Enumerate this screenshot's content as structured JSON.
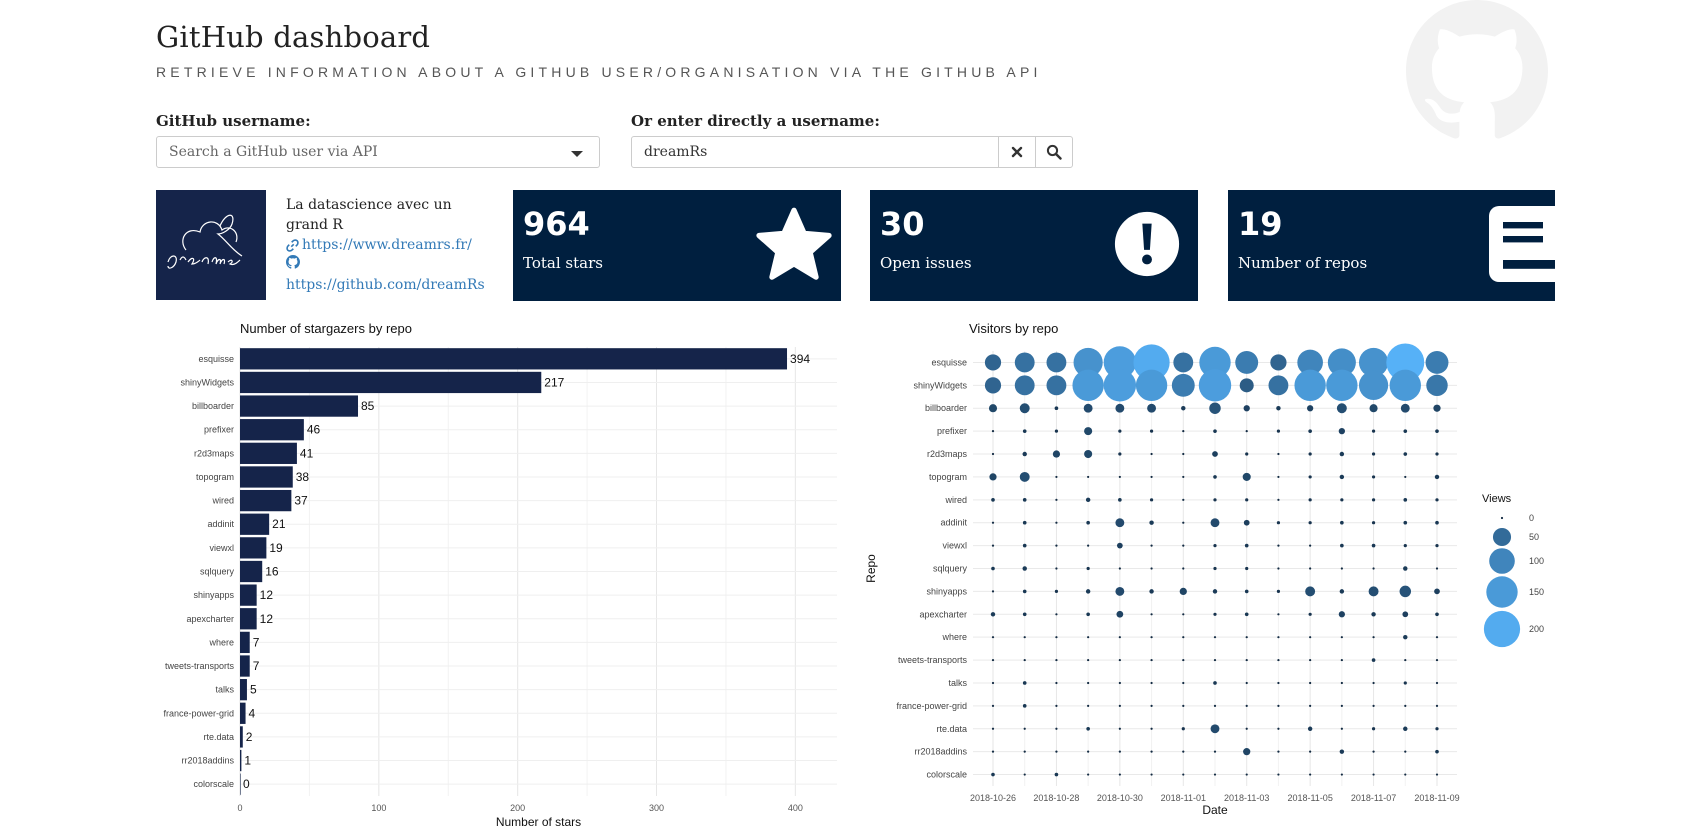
{
  "header": {
    "title": "GitHub dashboard",
    "subtitle": "RETRIEVE INFORMATION ABOUT A GITHUB USER/ORGANISATION VIA THE GITHUB API"
  },
  "search": {
    "username_label": "GitHub username:",
    "select_placeholder": "Search a GitHub user via API",
    "direct_label": "Or enter directly a username:",
    "direct_value": "dreamRs"
  },
  "user": {
    "bio": "La datascience avec un grand R",
    "website": "https://www.dreamrs.fr/",
    "github_url": "https://github.com/dreamRs"
  },
  "stats": [
    {
      "value": "964",
      "caption": "Total stars",
      "icon": "star-icon"
    },
    {
      "value": "30",
      "caption": "Open issues",
      "icon": "exclamation-icon"
    },
    {
      "value": "19",
      "caption": "Number of repos",
      "icon": "book-icon"
    }
  ],
  "colors": {
    "navy": "#001f3f",
    "bar": "#15244a",
    "link": "#337ab7"
  },
  "chart_data": [
    {
      "type": "bar",
      "title": "Number of stargazers by repo",
      "xlabel": "Number of stars",
      "ylabel": "",
      "xlim": [
        0,
        430
      ],
      "xticks": [
        0,
        100,
        200,
        300,
        400
      ],
      "categories": [
        "esquisse",
        "shinyWidgets",
        "billboarder",
        "prefixer",
        "r2d3maps",
        "topogram",
        "wired",
        "addinit",
        "viewxl",
        "sqlquery",
        "shinyapps",
        "apexcharter",
        "where",
        "tweets-transports",
        "talks",
        "france-power-grid",
        "rte.data",
        "rr2018addins",
        "colorscale"
      ],
      "values": [
        394,
        217,
        85,
        46,
        41,
        38,
        37,
        21,
        19,
        16,
        12,
        12,
        7,
        7,
        5,
        4,
        2,
        1,
        0
      ]
    },
    {
      "type": "scatter",
      "title": "Visitors by repo",
      "xlabel": "Date",
      "ylabel": "Repo",
      "legend_title": "Views",
      "legend_values": [
        0,
        50,
        100,
        150,
        200
      ],
      "xticks": [
        "2018-10-26",
        "2018-10-28",
        "2018-10-30",
        "2018-11-01",
        "2018-11-03",
        "2018-11-05",
        "2018-11-07",
        "2018-11-09"
      ],
      "dates": [
        "2018-10-26",
        "2018-10-27",
        "2018-10-28",
        "2018-10-29",
        "2018-10-30",
        "2018-10-31",
        "2018-11-01",
        "2018-11-02",
        "2018-11-03",
        "2018-11-04",
        "2018-11-05",
        "2018-11-06",
        "2018-11-07",
        "2018-11-08",
        "2018-11-09"
      ],
      "repos": [
        "esquisse",
        "shinyWidgets",
        "billboarder",
        "prefixer",
        "r2d3maps",
        "topogram",
        "wired",
        "addinit",
        "viewxl",
        "sqlquery",
        "shinyapps",
        "apexcharter",
        "where",
        "tweets-transports",
        "talks",
        "france-power-grid",
        "rte.data",
        "rr2018addins",
        "colorscale"
      ],
      "views": [
        [
          40,
          60,
          60,
          130,
          160,
          200,
          60,
          150,
          80,
          40,
          100,
          120,
          130,
          220,
          80
        ],
        [
          40,
          60,
          60,
          150,
          160,
          150,
          80,
          160,
          30,
          60,
          150,
          150,
          130,
          150,
          70
        ],
        [
          10,
          15,
          2,
          12,
          12,
          12,
          3,
          20,
          6,
          3,
          6,
          15,
          10,
          12,
          8
        ],
        [
          0,
          2,
          1,
          10,
          1,
          1,
          0,
          2,
          0,
          1,
          2,
          6,
          1,
          2,
          2
        ],
        [
          0,
          3,
          8,
          10,
          1,
          0,
          0,
          5,
          1,
          0,
          1,
          3,
          1,
          2,
          1
        ],
        [
          8,
          15,
          0,
          0,
          0,
          0,
          0,
          2,
          10,
          0,
          1,
          3,
          1,
          0,
          3
        ],
        [
          2,
          2,
          0,
          3,
          2,
          1,
          0,
          1,
          1,
          0,
          1,
          1,
          1,
          2,
          1
        ],
        [
          0,
          2,
          0,
          2,
          12,
          3,
          0,
          12,
          5,
          1,
          1,
          2,
          1,
          2,
          2
        ],
        [
          0,
          2,
          0,
          0,
          5,
          0,
          0,
          1,
          2,
          0,
          0,
          2,
          2,
          1,
          1
        ],
        [
          2,
          3,
          0,
          1,
          0,
          0,
          0,
          1,
          1,
          0,
          0,
          0,
          0,
          3,
          0
        ],
        [
          0,
          2,
          1,
          3,
          12,
          3,
          8,
          3,
          2,
          1,
          15,
          3,
          15,
          20,
          5
        ],
        [
          3,
          2,
          0,
          2,
          7,
          0,
          0,
          1,
          2,
          0,
          1,
          6,
          3,
          5,
          2
        ],
        [
          0,
          0,
          0,
          0,
          0,
          0,
          0,
          0,
          0,
          0,
          0,
          0,
          0,
          3,
          0
        ],
        [
          0,
          0,
          0,
          0,
          0,
          0,
          0,
          0,
          0,
          0,
          0,
          0,
          2,
          0,
          0
        ],
        [
          0,
          2,
          0,
          0,
          0,
          0,
          0,
          2,
          0,
          0,
          0,
          0,
          0,
          1,
          0
        ],
        [
          0,
          2,
          0,
          0,
          0,
          0,
          0,
          0,
          0,
          0,
          0,
          0,
          0,
          0,
          0
        ],
        [
          0,
          0,
          0,
          2,
          0,
          0,
          1,
          12,
          0,
          0,
          3,
          0,
          1,
          3,
          1
        ],
        [
          0,
          0,
          0,
          0,
          0,
          0,
          0,
          0,
          8,
          0,
          0,
          3,
          0,
          0,
          2
        ],
        [
          2,
          0,
          2,
          0,
          0,
          0,
          0,
          0,
          0,
          0,
          0,
          0,
          0,
          0,
          0
        ]
      ]
    }
  ]
}
